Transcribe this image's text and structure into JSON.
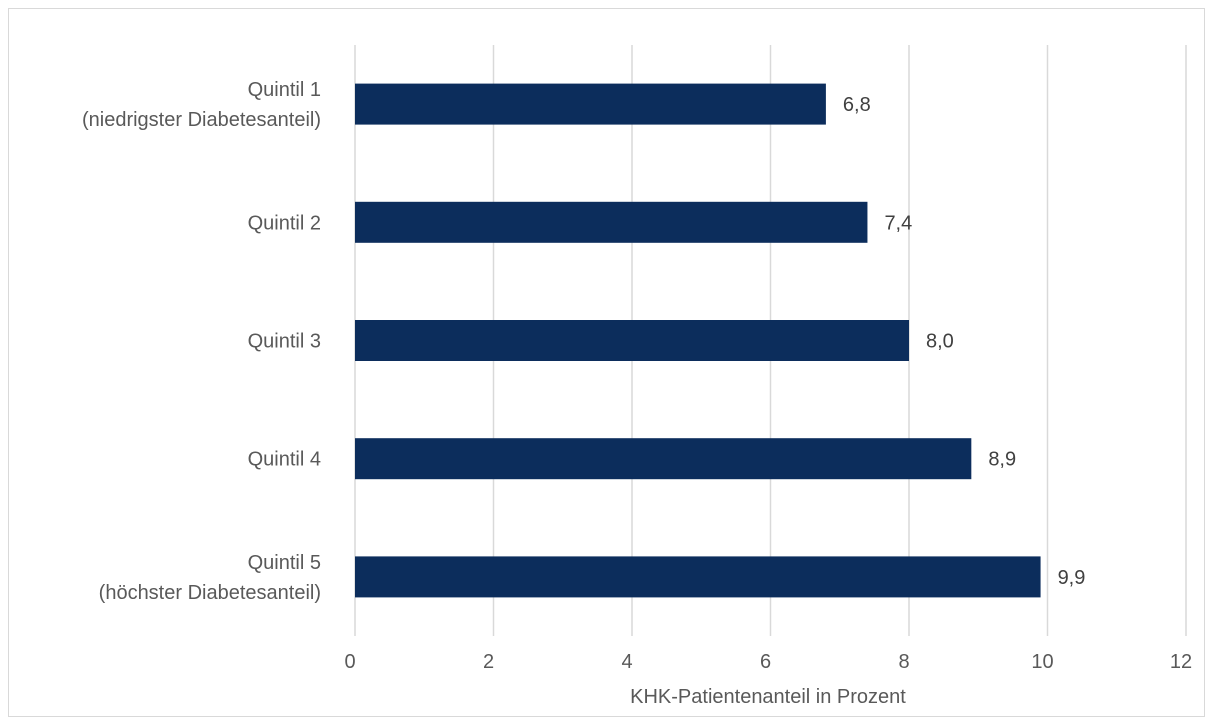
{
  "chart_data": {
    "type": "bar",
    "orientation": "horizontal",
    "categories": [
      [
        "Quintil 1",
        "(niedrigster Diabetesanteil)"
      ],
      [
        "Quintil 2"
      ],
      [
        "Quintil 3"
      ],
      [
        "Quintil 4"
      ],
      [
        "Quintil 5",
        "(höchster Diabetesanteil)"
      ]
    ],
    "values": [
      6.8,
      7.4,
      8.0,
      8.9,
      9.9
    ],
    "value_labels": [
      "6,8",
      "7,4",
      "8,0",
      "8,9",
      "9,9"
    ],
    "xlabel": "KHK-Patientenanteil in Prozent",
    "ylabel": "",
    "xlim": [
      0,
      12
    ],
    "xticks": [
      0,
      2,
      4,
      6,
      8,
      10,
      12
    ],
    "grid": "vertical",
    "legend": "none",
    "bar_color": "#0c2d5c",
    "grid_color": "#d9d9d9"
  }
}
